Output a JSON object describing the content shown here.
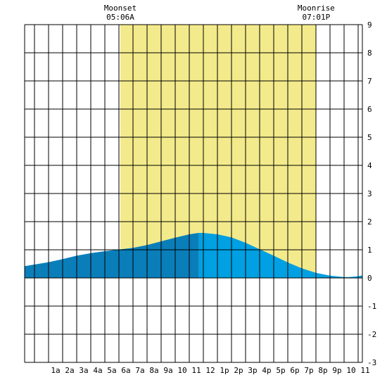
{
  "chart_data": {
    "type": "area",
    "x_unit": "hour of day",
    "xlim": [
      -1.7,
      22.3
    ],
    "ylim": [
      -3,
      9
    ],
    "y_ticks": [
      -3,
      -2,
      -1,
      0,
      1,
      2,
      3,
      4,
      5,
      6,
      7,
      8,
      9
    ],
    "x_ticks": [
      {
        "hour": 1,
        "label": "1a"
      },
      {
        "hour": 2,
        "label": "2a"
      },
      {
        "hour": 3,
        "label": "3a"
      },
      {
        "hour": 4,
        "label": "4a"
      },
      {
        "hour": 5,
        "label": "5a"
      },
      {
        "hour": 6,
        "label": "6a"
      },
      {
        "hour": 7,
        "label": "7a"
      },
      {
        "hour": 8,
        "label": "8a"
      },
      {
        "hour": 9,
        "label": "9a"
      },
      {
        "hour": 10,
        "label": "10"
      },
      {
        "hour": 11,
        "label": "11"
      },
      {
        "hour": 12,
        "label": "12"
      },
      {
        "hour": 13,
        "label": "1p"
      },
      {
        "hour": 14,
        "label": "2p"
      },
      {
        "hour": 15,
        "label": "3p"
      },
      {
        "hour": 16,
        "label": "4p"
      },
      {
        "hour": 17,
        "label": "5p"
      },
      {
        "hour": 18,
        "label": "6p"
      },
      {
        "hour": 19,
        "label": "7p"
      },
      {
        "hour": 20,
        "label": "8p"
      },
      {
        "hour": 21,
        "label": "9p"
      },
      {
        "hour": 22,
        "label": "10"
      },
      {
        "hour": 23,
        "label": "11"
      }
    ],
    "grid": true,
    "moon_up": {
      "start": 5.1,
      "end": 19.0167
    },
    "annotations": [
      {
        "name": "Moonset",
        "time": "05:06A",
        "hour": 5.1
      },
      {
        "name": "Moonrise",
        "time": "07:01P",
        "hour": 19.0167
      }
    ],
    "tide_series": {
      "x": [
        -1.7,
        0,
        1,
        2,
        3,
        4,
        5,
        6,
        7,
        8,
        9,
        10,
        10.67,
        11,
        12,
        13,
        14,
        15,
        16,
        17,
        18,
        19,
        20,
        21,
        21.33,
        22,
        22.3
      ],
      "y": [
        0.42,
        0.56,
        0.67,
        0.79,
        0.88,
        0.95,
        1.01,
        1.07,
        1.17,
        1.3,
        1.43,
        1.55,
        1.6,
        1.6,
        1.55,
        1.44,
        1.25,
        1.02,
        0.79,
        0.55,
        0.34,
        0.18,
        0.08,
        0.03,
        0.03,
        0.06,
        0.09
      ]
    },
    "split_hour": 10.67,
    "colors": {
      "moon_band": "#f3ea8c",
      "tide_early": "#0a7eb9",
      "tide_late": "#00a0e2",
      "grid": "#000000",
      "background": "#ffffff"
    }
  }
}
